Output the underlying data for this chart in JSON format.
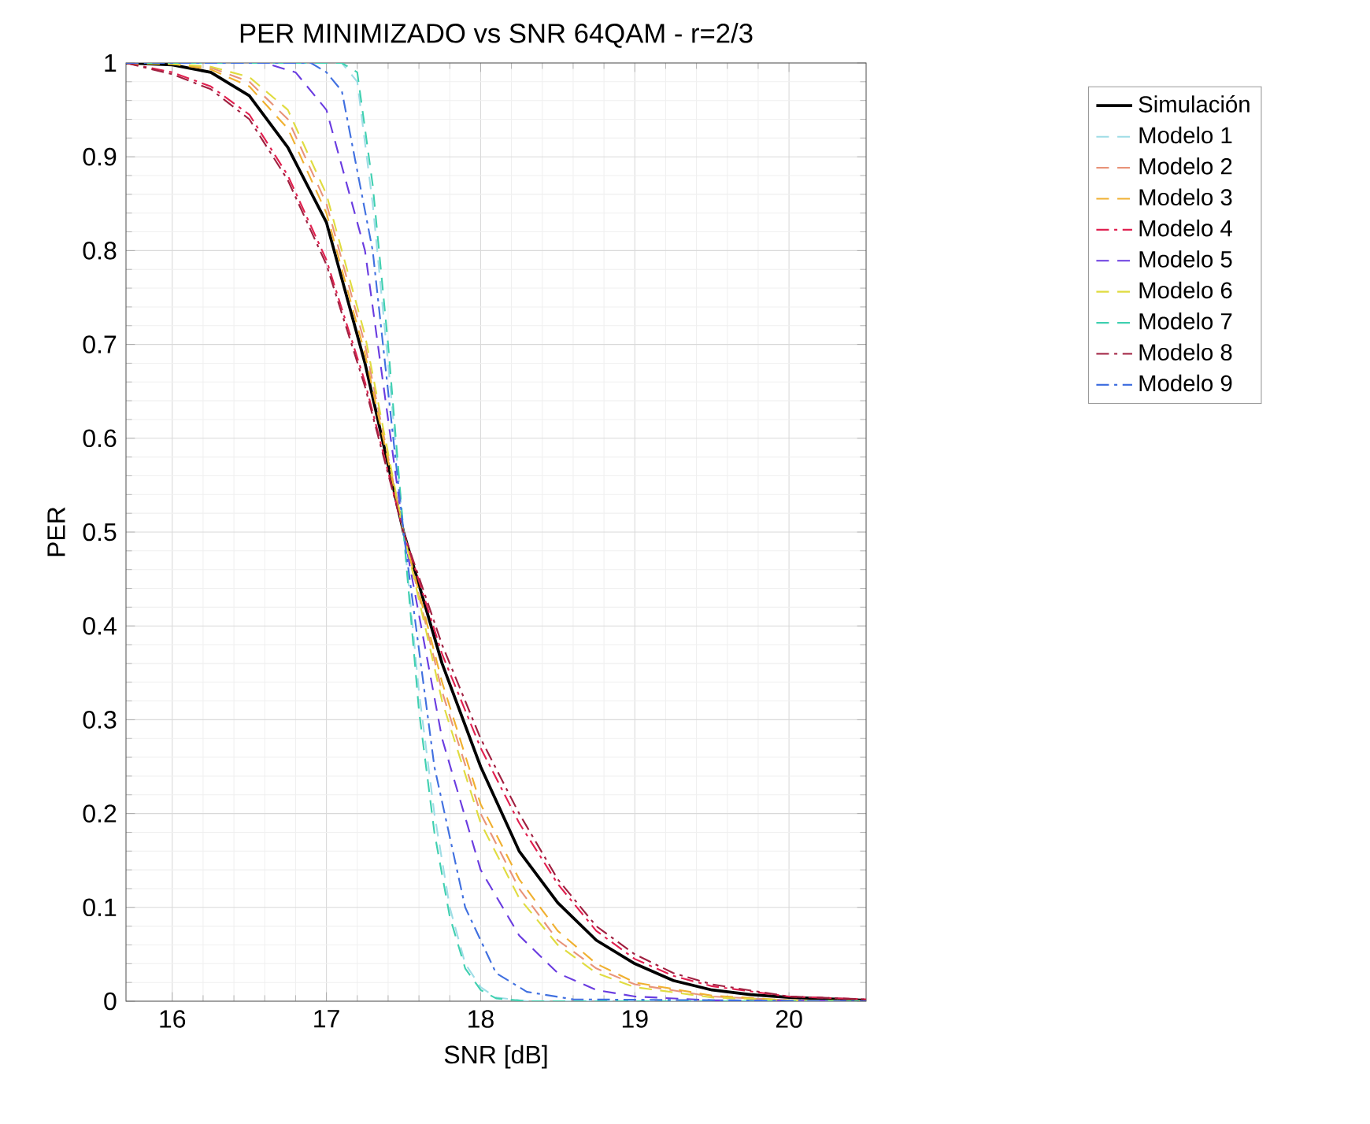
{
  "chart_data": {
    "type": "line",
    "title": "PER MINIMIZADO vs SNR   64QAM - r=2/3",
    "xlabel": "SNR [dB]",
    "ylabel": "PER",
    "xlim": [
      15.7,
      20.5
    ],
    "ylim": [
      0,
      1
    ],
    "xticks": [
      16,
      17,
      18,
      19,
      20
    ],
    "yticks": [
      0,
      0.1,
      0.2,
      0.3,
      0.4,
      0.5,
      0.6,
      0.7,
      0.8,
      0.9,
      1
    ],
    "grid": true,
    "legend": "top right",
    "marker": "none",
    "series": [
      {
        "name": "Simulación",
        "color": "#000000",
        "line_style": "solid",
        "x": [
          15.7,
          16,
          16.25,
          16.5,
          16.75,
          17,
          17.25,
          17.5,
          17.75,
          18,
          18.25,
          18.5,
          18.75,
          19,
          19.25,
          19.5,
          19.75,
          20,
          20.5
        ],
        "values": [
          1,
          0.998,
          0.99,
          0.965,
          0.91,
          0.83,
          0.68,
          0.5,
          0.36,
          0.25,
          0.16,
          0.105,
          0.065,
          0.04,
          0.022,
          0.012,
          0.007,
          0.004,
          0.001
        ]
      },
      {
        "name": "Modelo 1",
        "color": "#9fdde6",
        "line_style": "dashed",
        "x": [
          15.7,
          17.1,
          17.2,
          17.3,
          17.4,
          17.5,
          17.6,
          17.7,
          17.8,
          17.9,
          18,
          18.1,
          18.3,
          20.5
        ],
        "values": [
          1,
          1,
          0.98,
          0.85,
          0.68,
          0.5,
          0.33,
          0.2,
          0.1,
          0.04,
          0.015,
          0.004,
          0,
          0
        ]
      },
      {
        "name": "Modelo 2",
        "color": "#e8947a",
        "line_style": "dashed",
        "x": [
          15.7,
          16,
          16.25,
          16.5,
          16.75,
          17,
          17.25,
          17.5,
          17.75,
          18,
          18.25,
          18.5,
          18.75,
          19,
          19.5,
          20,
          20.5
        ],
        "values": [
          1,
          0.999,
          0.995,
          0.98,
          0.94,
          0.85,
          0.7,
          0.5,
          0.33,
          0.2,
          0.12,
          0.065,
          0.035,
          0.018,
          0.005,
          0.001,
          0
        ]
      },
      {
        "name": "Modelo 3",
        "color": "#f0b030",
        "line_style": "dashed",
        "x": [
          15.7,
          16,
          16.25,
          16.5,
          16.75,
          17,
          17.25,
          17.5,
          17.75,
          18,
          18.25,
          18.5,
          18.75,
          19,
          19.5,
          20,
          20.5
        ],
        "values": [
          1,
          0.999,
          0.993,
          0.975,
          0.93,
          0.84,
          0.69,
          0.5,
          0.34,
          0.21,
          0.13,
          0.075,
          0.04,
          0.02,
          0.006,
          0.001,
          0
        ]
      },
      {
        "name": "Modelo 4",
        "color": "#e0204f",
        "line_style": "dashdot",
        "x": [
          15.7,
          16,
          16.25,
          16.5,
          16.75,
          17,
          17.25,
          17.5,
          17.75,
          18,
          18.25,
          18.5,
          18.75,
          19,
          19.25,
          19.5,
          20,
          20.5
        ],
        "values": [
          1,
          0.99,
          0.975,
          0.945,
          0.88,
          0.79,
          0.66,
          0.5,
          0.37,
          0.27,
          0.19,
          0.125,
          0.075,
          0.045,
          0.027,
          0.016,
          0.005,
          0.002
        ]
      },
      {
        "name": "Modelo 5",
        "color": "#6a3ce0",
        "line_style": "dashed",
        "x": [
          15.7,
          16.6,
          16.8,
          17,
          17.25,
          17.5,
          17.75,
          18,
          18.25,
          18.5,
          18.75,
          19,
          19.5,
          20.5
        ],
        "values": [
          1,
          1,
          0.99,
          0.95,
          0.8,
          0.5,
          0.28,
          0.14,
          0.07,
          0.03,
          0.012,
          0.005,
          0.001,
          0
        ]
      },
      {
        "name": "Modelo 6",
        "color": "#e0dc40",
        "line_style": "dashed",
        "x": [
          15.7,
          16,
          16.25,
          16.5,
          16.75,
          17,
          17.25,
          17.5,
          17.75,
          18,
          18.25,
          18.5,
          18.75,
          19,
          19.5,
          20,
          20.5
        ],
        "values": [
          1,
          0.999,
          0.996,
          0.985,
          0.95,
          0.86,
          0.71,
          0.5,
          0.32,
          0.19,
          0.11,
          0.06,
          0.03,
          0.015,
          0.004,
          0.001,
          0
        ]
      },
      {
        "name": "Modelo 7",
        "color": "#40d0b0",
        "line_style": "dashed",
        "x": [
          15.7,
          17.1,
          17.2,
          17.3,
          17.4,
          17.5,
          17.6,
          17.7,
          17.8,
          17.9,
          18,
          18.1,
          18.3,
          20.5
        ],
        "values": [
          1,
          1,
          0.99,
          0.87,
          0.7,
          0.5,
          0.31,
          0.18,
          0.09,
          0.035,
          0.012,
          0.003,
          0,
          0
        ]
      },
      {
        "name": "Modelo 8",
        "color": "#a02040",
        "line_style": "dashdot",
        "x": [
          15.7,
          16,
          16.25,
          16.5,
          16.75,
          17,
          17.25,
          17.5,
          17.75,
          18,
          18.25,
          18.5,
          18.75,
          19,
          19.25,
          19.5,
          20,
          20.5
        ],
        "values": [
          1,
          0.988,
          0.972,
          0.94,
          0.875,
          0.785,
          0.655,
          0.5,
          0.38,
          0.28,
          0.2,
          0.13,
          0.08,
          0.05,
          0.03,
          0.018,
          0.005,
          0.002
        ]
      },
      {
        "name": "Modelo 9",
        "color": "#4070e0",
        "line_style": "dashdot",
        "x": [
          15.7,
          16.9,
          17,
          17.1,
          17.3,
          17.5,
          17.7,
          17.9,
          18.1,
          18.3,
          18.6,
          20.5
        ],
        "values": [
          1,
          1,
          0.99,
          0.97,
          0.8,
          0.5,
          0.25,
          0.1,
          0.03,
          0.01,
          0.002,
          0
        ]
      }
    ]
  }
}
